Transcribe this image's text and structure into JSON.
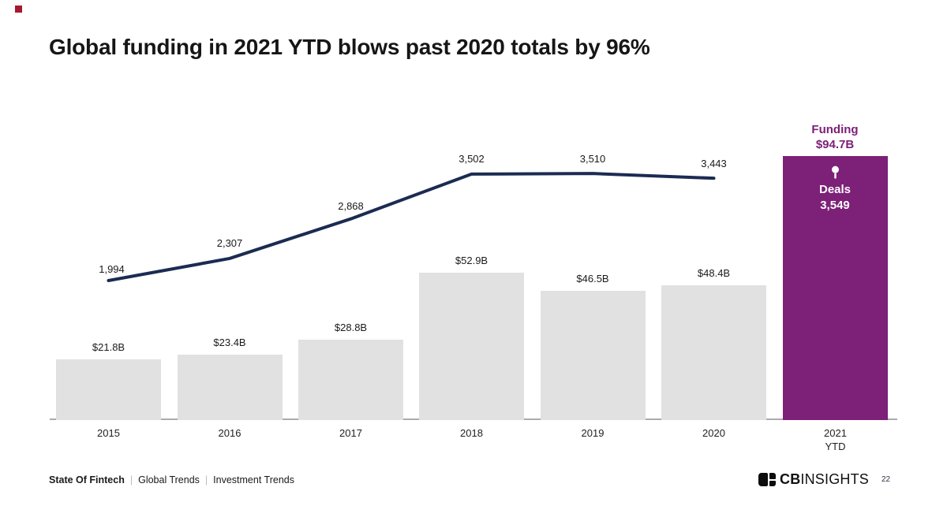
{
  "slide": {
    "title": "Global funding in 2021 YTD blows past 2020 totals by 96%",
    "accent_color": "#A6192E",
    "page_number": "22"
  },
  "footer": {
    "report": "State Of Fintech",
    "separator": "|",
    "section": "Global Trends",
    "subsection": "Investment Trends",
    "logo_bold": "CB",
    "logo_light": "INSIGHTS"
  },
  "icons": {
    "deals_marker": "pin-marker-icon",
    "logo": "cbinsights-logo-icon"
  },
  "chart_data": {
    "type": "bar",
    "subtype": "bar+line combo",
    "categories": [
      "2015",
      "2016",
      "2017",
      "2018",
      "2019",
      "2020",
      "2021 YTD"
    ],
    "series": [
      {
        "name": "Funding ($B)",
        "type": "bar",
        "values": [
          21.8,
          23.4,
          28.8,
          52.9,
          46.5,
          48.4,
          94.7
        ],
        "labels": [
          "$21.8B",
          "$23.4B",
          "$28.8B",
          "$52.9B",
          "$46.5B",
          "$48.4B",
          "$94.7B"
        ]
      },
      {
        "name": "Deals",
        "type": "line",
        "values": [
          1994,
          2307,
          2868,
          3502,
          3510,
          3443,
          3549
        ],
        "labels": [
          "1,994",
          "2,307",
          "2,868",
          "3,502",
          "3,510",
          "3,443",
          "3,549"
        ]
      }
    ],
    "highlight": {
      "category": "2021 YTD",
      "funding_label": "Funding",
      "funding_value": "$94.7B",
      "deals_label": "Deals",
      "deals_value": "3,549"
    },
    "title": "Global funding in 2021 YTD blows past 2020 totals by 96%",
    "xlabel": "",
    "ylabel": "",
    "grid": false,
    "legend_position": "none",
    "colors": {
      "bar": "#E1E1E1",
      "highlight_bar": "#7D2077",
      "line": "#1B2B52",
      "label": "#1A1A1A",
      "axis": "#ABABAB",
      "highlight_text": "#7D2077"
    }
  }
}
